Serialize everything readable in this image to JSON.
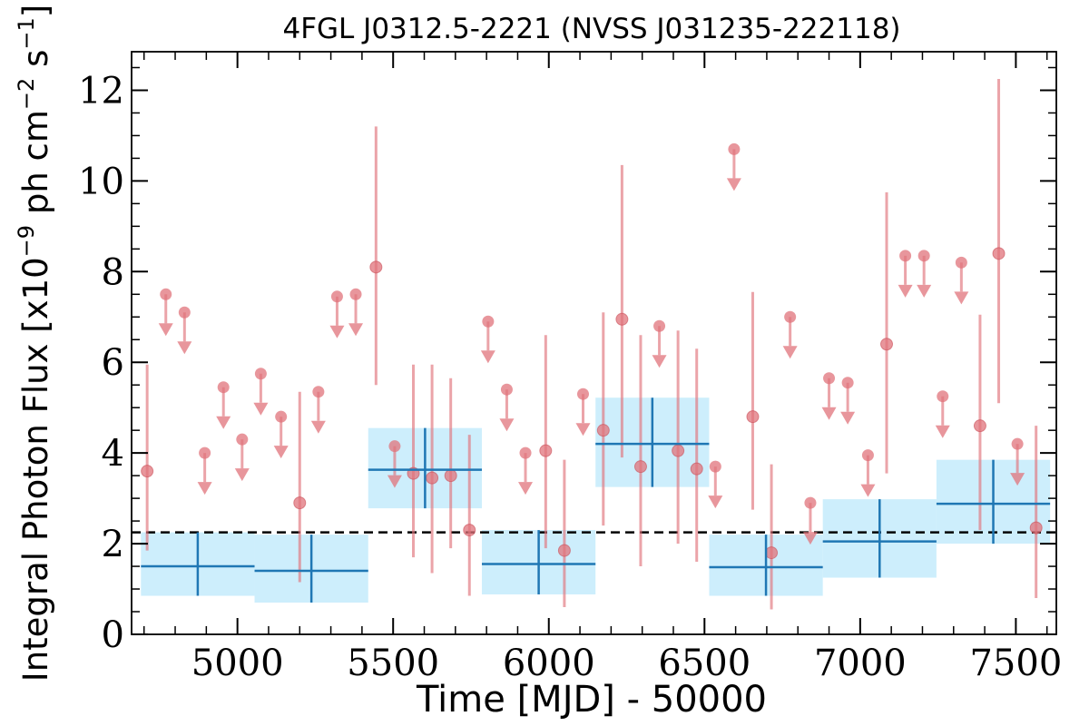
{
  "chart_data": {
    "type": "scatter",
    "title": "4FGL J0312.5-2221 (NVSS J031235-222118)",
    "xlabel": "Time [MJD] - 50000",
    "ylabel": {
      "prefix": "Integral Photon Flux [x10",
      "exp1": "−9",
      "middle": " ph cm",
      "exp2": "−2",
      "middle2": " s",
      "exp3": "−1",
      "suffix": "]"
    },
    "xlim": [
      4660,
      7630
    ],
    "ylim": [
      0,
      12.85
    ],
    "xticks": [
      5000,
      5500,
      6000,
      6500,
      7000,
      7500
    ],
    "xtick_labels": [
      "5000",
      "5500",
      "6000",
      "6500",
      "7000",
      "7500"
    ],
    "yticks": [
      0,
      2,
      4,
      6,
      8,
      10,
      12
    ],
    "ytick_labels": [
      "0",
      "2",
      "4",
      "6",
      "8",
      "10",
      "12"
    ],
    "average_flux": 2.25,
    "colors": {
      "point": "#e0737b",
      "long_term": "#1f77b4",
      "long_term_band": "#cdeefc",
      "average_line": "#000000"
    },
    "detections": [
      {
        "x": 4710,
        "y": 3.6,
        "ylo": 1.85,
        "yhi": 5.95
      },
      {
        "x": 5200,
        "y": 2.9,
        "ylo": 1.15,
        "yhi": 5.35
      },
      {
        "x": 5445,
        "y": 8.1,
        "ylo": 5.5,
        "yhi": 11.2
      },
      {
        "x": 5565,
        "y": 3.55,
        "ylo": 1.7,
        "yhi": 5.95
      },
      {
        "x": 5625,
        "y": 3.45,
        "ylo": 1.35,
        "yhi": 5.95
      },
      {
        "x": 5685,
        "y": 3.5,
        "ylo": 1.9,
        "yhi": 5.65
      },
      {
        "x": 5745,
        "y": 2.3,
        "ylo": 0.85,
        "yhi": 4.4
      },
      {
        "x": 5990,
        "y": 4.05,
        "ylo": 1.9,
        "yhi": 6.6
      },
      {
        "x": 6050,
        "y": 1.85,
        "ylo": 0.6,
        "yhi": 3.85
      },
      {
        "x": 6175,
        "y": 4.5,
        "ylo": 2.4,
        "yhi": 7.1
      },
      {
        "x": 6235,
        "y": 6.95,
        "ylo": 3.9,
        "yhi": 10.35
      },
      {
        "x": 6295,
        "y": 3.7,
        "ylo": 1.5,
        "yhi": 6.6
      },
      {
        "x": 6415,
        "y": 4.05,
        "ylo": 2.0,
        "yhi": 6.7
      },
      {
        "x": 6475,
        "y": 3.65,
        "ylo": 1.6,
        "yhi": 6.3
      },
      {
        "x": 6655,
        "y": 4.8,
        "ylo": 2.75,
        "yhi": 7.55
      },
      {
        "x": 6715,
        "y": 1.8,
        "ylo": 0.55,
        "yhi": 3.75
      },
      {
        "x": 7085,
        "y": 6.4,
        "ylo": 3.55,
        "yhi": 9.75
      },
      {
        "x": 7385,
        "y": 4.6,
        "ylo": 2.3,
        "yhi": 7.05
      },
      {
        "x": 7445,
        "y": 8.4,
        "ylo": 5.1,
        "yhi": 12.25
      },
      {
        "x": 7565,
        "y": 2.35,
        "ylo": 0.8,
        "yhi": 4.6
      }
    ],
    "upper_limits": [
      {
        "x": 4770,
        "y": 7.5
      },
      {
        "x": 4830,
        "y": 7.1
      },
      {
        "x": 4895,
        "y": 4.0
      },
      {
        "x": 4955,
        "y": 5.45
      },
      {
        "x": 5015,
        "y": 4.3
      },
      {
        "x": 5075,
        "y": 5.75
      },
      {
        "x": 5140,
        "y": 4.8
      },
      {
        "x": 5260,
        "y": 5.35
      },
      {
        "x": 5320,
        "y": 7.45
      },
      {
        "x": 5380,
        "y": 7.5
      },
      {
        "x": 5505,
        "y": 4.15
      },
      {
        "x": 5805,
        "y": 6.9
      },
      {
        "x": 5865,
        "y": 5.4
      },
      {
        "x": 5925,
        "y": 4.0
      },
      {
        "x": 6110,
        "y": 5.3
      },
      {
        "x": 6355,
        "y": 6.8
      },
      {
        "x": 6535,
        "y": 3.7
      },
      {
        "x": 6595,
        "y": 10.7
      },
      {
        "x": 6775,
        "y": 7.0
      },
      {
        "x": 6840,
        "y": 2.9
      },
      {
        "x": 6900,
        "y": 5.65
      },
      {
        "x": 6960,
        "y": 5.55
      },
      {
        "x": 7025,
        "y": 3.95
      },
      {
        "x": 7145,
        "y": 8.35
      },
      {
        "x": 7205,
        "y": 8.35
      },
      {
        "x": 7265,
        "y": 5.25
      },
      {
        "x": 7325,
        "y": 8.2
      },
      {
        "x": 7505,
        "y": 4.2
      }
    ],
    "long_term_bins": [
      {
        "x0": 4690,
        "x1": 5055,
        "y": 1.5,
        "ylo": 0.85,
        "yhi": 2.25
      },
      {
        "x0": 5055,
        "x1": 5420,
        "y": 1.4,
        "ylo": 0.7,
        "yhi": 2.2
      },
      {
        "x0": 5420,
        "x1": 5785,
        "y": 3.63,
        "ylo": 2.78,
        "yhi": 4.55
      },
      {
        "x0": 5785,
        "x1": 6150,
        "y": 1.55,
        "ylo": 0.88,
        "yhi": 2.3
      },
      {
        "x0": 6150,
        "x1": 6515,
        "y": 4.2,
        "ylo": 3.25,
        "yhi": 5.22
      },
      {
        "x0": 6515,
        "x1": 6880,
        "y": 1.48,
        "ylo": 0.85,
        "yhi": 2.2
      },
      {
        "x0": 6880,
        "x1": 7245,
        "y": 2.05,
        "ylo": 1.25,
        "yhi": 2.98
      },
      {
        "x0": 7245,
        "x1": 7610,
        "y": 2.88,
        "ylo": 2.0,
        "yhi": 3.85
      }
    ]
  }
}
